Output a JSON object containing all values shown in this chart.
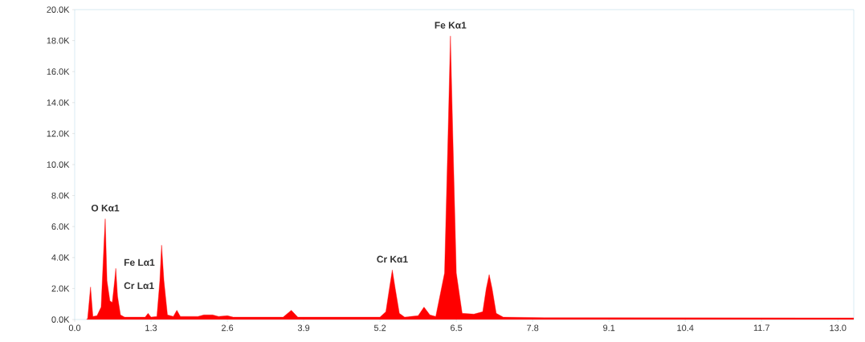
{
  "chart_data": {
    "type": "area",
    "x": [
      0.2,
      0.22,
      0.27,
      0.31,
      0.38,
      0.45,
      0.5,
      0.52,
      0.55,
      0.6,
      0.64,
      0.68,
      0.7,
      0.73,
      0.78,
      0.85,
      1.2,
      1.25,
      1.3,
      1.4,
      1.45,
      1.48,
      1.52,
      1.58,
      1.68,
      1.74,
      1.8,
      2.1,
      2.2,
      2.35,
      2.45,
      2.6,
      2.7,
      3.55,
      3.69,
      3.8,
      5.2,
      5.3,
      5.36,
      5.41,
      5.46,
      5.53,
      5.62,
      5.85,
      5.95,
      6.05,
      6.15,
      6.3,
      6.36,
      6.4,
      6.44,
      6.5,
      6.6,
      6.8,
      6.95,
      7.01,
      7.06,
      7.11,
      7.18,
      7.3,
      8.0,
      13.27
    ],
    "series": [
      {
        "color": "#ff0000",
        "values": [
          0,
          50,
          2100,
          200,
          250,
          800,
          5000,
          6500,
          2500,
          1200,
          1100,
          2500,
          3300,
          1500,
          300,
          150,
          150,
          400,
          150,
          200,
          2500,
          4800,
          2500,
          300,
          200,
          600,
          200,
          200,
          300,
          300,
          200,
          250,
          150,
          150,
          600,
          150,
          150,
          500,
          2000,
          3200,
          2000,
          400,
          150,
          250,
          800,
          300,
          200,
          3000,
          12000,
          18300,
          12000,
          3000,
          400,
          350,
          500,
          2000,
          2900,
          2000,
          400,
          150,
          120,
          100
        ]
      }
    ],
    "xlim": [
      0,
      13.27
    ],
    "ylim": [
      0,
      20000
    ],
    "xticks": [
      {
        "value": 0,
        "label": "0.0"
      },
      {
        "value": 1.3,
        "label": "1.3"
      },
      {
        "value": 2.6,
        "label": "2.6"
      },
      {
        "value": 3.9,
        "label": "3.9"
      },
      {
        "value": 5.2,
        "label": "5.2"
      },
      {
        "value": 6.5,
        "label": "6.5"
      },
      {
        "value": 7.8,
        "label": "7.8"
      },
      {
        "value": 9.1,
        "label": "9.1"
      },
      {
        "value": 10.4,
        "label": "10.4"
      },
      {
        "value": 11.7,
        "label": "11.7"
      },
      {
        "value": 13.0,
        "label": "13.0"
      }
    ],
    "yticks": [
      {
        "value": 0,
        "label": "0.0K"
      },
      {
        "value": 2000,
        "label": "2.0K"
      },
      {
        "value": 4000,
        "label": "4.0K"
      },
      {
        "value": 6000,
        "label": "6.0K"
      },
      {
        "value": 8000,
        "label": "8.0K"
      },
      {
        "value": 10000,
        "label": "10.0K"
      },
      {
        "value": 12000,
        "label": "12.0K"
      },
      {
        "value": 14000,
        "label": "14.0K"
      },
      {
        "value": 16000,
        "label": "16.0K"
      },
      {
        "value": 18000,
        "label": "18.0K"
      },
      {
        "value": 20000,
        "label": "20.0K"
      }
    ],
    "annotations": [
      {
        "text": "O Kα1",
        "x": 0.52,
        "y": 6500
      },
      {
        "text": "Fe Lα1",
        "x": 0.7,
        "y": 3300
      },
      {
        "text": "Cr Lα1",
        "x": 0.57,
        "y": 1800
      },
      {
        "text": "Cr Kα1",
        "x": 5.41,
        "y": 3200
      },
      {
        "text": "Fe Kα1",
        "x": 6.4,
        "y": 18300
      }
    ]
  }
}
